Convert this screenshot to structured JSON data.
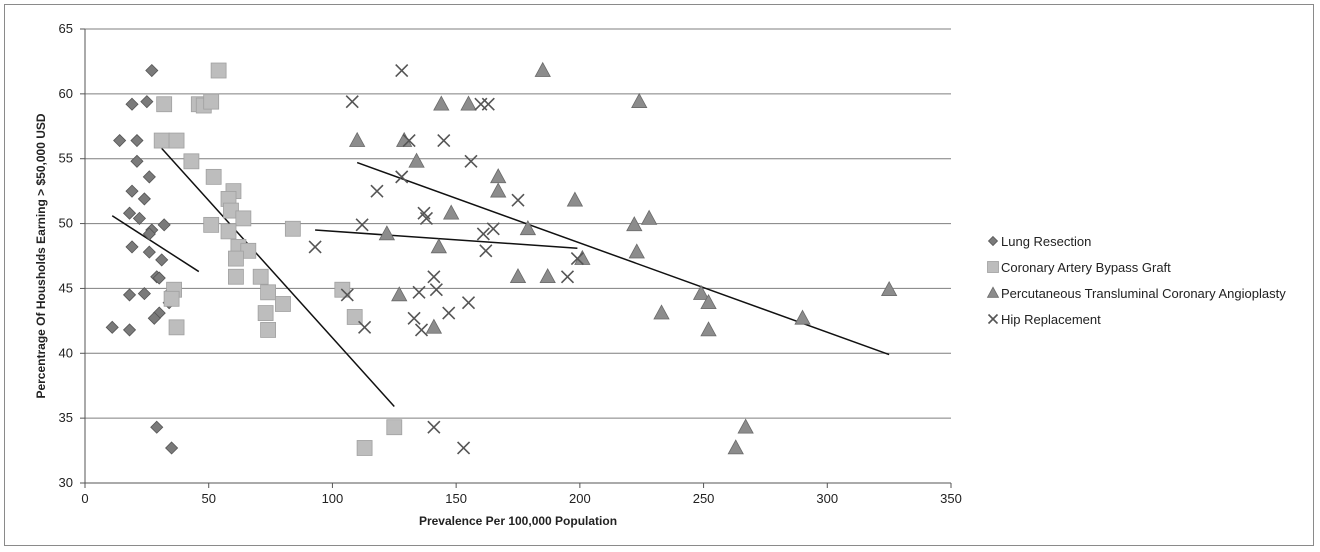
{
  "chart_data": {
    "type": "scatter",
    "title": "",
    "xlabel": "Prevalence Per 100,000 Population",
    "ylabel": "Percentrage Of Housholds Earning > $50,000 USD",
    "xlim": [
      0,
      350
    ],
    "ylim": [
      30,
      65
    ],
    "x_ticks": [
      0,
      50,
      100,
      150,
      200,
      250,
      300,
      350
    ],
    "y_ticks": [
      30,
      35,
      40,
      45,
      50,
      55,
      60,
      65
    ],
    "grid": "horizontal",
    "legend_position": "right",
    "series": [
      {
        "name": "Lung Resection",
        "marker": "diamond",
        "color": "#7a7a7a",
        "points": [
          [
            27,
            61.8
          ],
          [
            19,
            59.2
          ],
          [
            25,
            59.4
          ],
          [
            14,
            56.4
          ],
          [
            21,
            56.4
          ],
          [
            21,
            54.8
          ],
          [
            26,
            53.6
          ],
          [
            19,
            52.5
          ],
          [
            24,
            51.9
          ],
          [
            18,
            50.8
          ],
          [
            22,
            50.4
          ],
          [
            32,
            49.9
          ],
          [
            27,
            49.5
          ],
          [
            26,
            49.2
          ],
          [
            19,
            48.2
          ],
          [
            26,
            47.8
          ],
          [
            31,
            47.2
          ],
          [
            29,
            45.9
          ],
          [
            30,
            45.8
          ],
          [
            35,
            44.8
          ],
          [
            18,
            44.5
          ],
          [
            24,
            44.6
          ],
          [
            34,
            43.9
          ],
          [
            30,
            43.1
          ],
          [
            28,
            42.7
          ],
          [
            11,
            42.0
          ],
          [
            18,
            41.8
          ],
          [
            29,
            34.3
          ],
          [
            35,
            32.7
          ]
        ]
      },
      {
        "name": "Coronary Artery Bypass Graft",
        "marker": "square",
        "color": "#bdbdbd",
        "points": [
          [
            54,
            61.8
          ],
          [
            32,
            59.2
          ],
          [
            46,
            59.2
          ],
          [
            48,
            59.1
          ],
          [
            51,
            59.4
          ],
          [
            31,
            56.4
          ],
          [
            37,
            56.4
          ],
          [
            43,
            54.8
          ],
          [
            52,
            53.6
          ],
          [
            60,
            52.5
          ],
          [
            58,
            51.9
          ],
          [
            59,
            51.0
          ],
          [
            64,
            50.4
          ],
          [
            51,
            49.9
          ],
          [
            84,
            49.6
          ],
          [
            58,
            49.4
          ],
          [
            62,
            48.2
          ],
          [
            66,
            47.9
          ],
          [
            61,
            47.3
          ],
          [
            71,
            45.9
          ],
          [
            61,
            45.9
          ],
          [
            36,
            44.9
          ],
          [
            74,
            44.7
          ],
          [
            35,
            44.2
          ],
          [
            104,
            44.9
          ],
          [
            80,
            43.8
          ],
          [
            73,
            43.1
          ],
          [
            109,
            42.8
          ],
          [
            37,
            42.0
          ],
          [
            74,
            41.8
          ],
          [
            125,
            34.3
          ],
          [
            113,
            32.7
          ]
        ]
      },
      {
        "name": "Percutaneous Transluminal Coronary Angioplasty",
        "marker": "triangle",
        "color": "#8c8c8c",
        "points": [
          [
            185,
            61.8
          ],
          [
            144,
            59.2
          ],
          [
            155,
            59.2
          ],
          [
            224,
            59.4
          ],
          [
            110,
            56.4
          ],
          [
            129,
            56.4
          ],
          [
            134,
            54.8
          ],
          [
            167,
            53.6
          ],
          [
            167,
            52.5
          ],
          [
            198,
            51.8
          ],
          [
            148,
            50.8
          ],
          [
            228,
            50.4
          ],
          [
            222,
            49.9
          ],
          [
            179,
            49.6
          ],
          [
            122,
            49.2
          ],
          [
            143,
            48.2
          ],
          [
            223,
            47.8
          ],
          [
            201,
            47.3
          ],
          [
            175,
            45.9
          ],
          [
            187,
            45.9
          ],
          [
            325,
            44.9
          ],
          [
            249,
            44.6
          ],
          [
            127,
            44.5
          ],
          [
            252,
            43.9
          ],
          [
            233,
            43.1
          ],
          [
            290,
            42.7
          ],
          [
            141,
            42.0
          ],
          [
            252,
            41.8
          ],
          [
            267,
            34.3
          ],
          [
            263,
            32.7
          ]
        ]
      },
      {
        "name": "Hip Replacement",
        "marker": "x",
        "color": "#555555",
        "points": [
          [
            128,
            61.8
          ],
          [
            108,
            59.4
          ],
          [
            160,
            59.2
          ],
          [
            163,
            59.2
          ],
          [
            131,
            56.4
          ],
          [
            145,
            56.4
          ],
          [
            156,
            54.8
          ],
          [
            128,
            53.6
          ],
          [
            118,
            52.5
          ],
          [
            175,
            51.8
          ],
          [
            137,
            50.8
          ],
          [
            138,
            50.4
          ],
          [
            112,
            49.9
          ],
          [
            165,
            49.6
          ],
          [
            161,
            49.2
          ],
          [
            93,
            48.2
          ],
          [
            162,
            47.9
          ],
          [
            199,
            47.3
          ],
          [
            195,
            45.9
          ],
          [
            141,
            45.9
          ],
          [
            142,
            44.9
          ],
          [
            135,
            44.7
          ],
          [
            106,
            44.5
          ],
          [
            155,
            43.9
          ],
          [
            147,
            43.1
          ],
          [
            133,
            42.7
          ],
          [
            113,
            42.0
          ],
          [
            136,
            41.8
          ],
          [
            141,
            34.3
          ],
          [
            153,
            32.7
          ]
        ]
      }
    ],
    "trendlines": [
      {
        "series": "Lung Resection",
        "from": [
          11,
          50.6
        ],
        "to": [
          46,
          46.3
        ]
      },
      {
        "series": "Coronary Artery Bypass Graft",
        "from": [
          31,
          55.8
        ],
        "to": [
          125,
          35.9
        ]
      },
      {
        "series": "Percutaneous Transluminal Coronary Angioplasty",
        "from": [
          110,
          54.7
        ],
        "to": [
          325,
          39.9
        ]
      },
      {
        "series": "Hip Replacement",
        "from": [
          93,
          49.5
        ],
        "to": [
          199,
          48.1
        ]
      }
    ]
  }
}
